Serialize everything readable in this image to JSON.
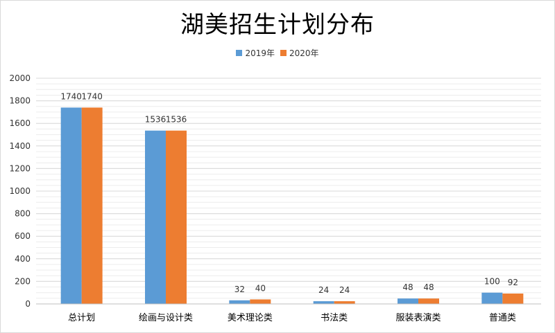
{
  "chart_data": {
    "type": "bar",
    "title": "湖美招生计划分布",
    "categories": [
      "总计划",
      "绘画与设计类",
      "美术理论类",
      "书法类",
      "服装表演类",
      "普通类"
    ],
    "series": [
      {
        "name": "2019年",
        "values": [
          1740,
          1536,
          32,
          24,
          48,
          100
        ],
        "color": "#5b9bd5"
      },
      {
        "name": "2020年",
        "values": [
          1740,
          1536,
          40,
          24,
          48,
          92
        ],
        "color": "#ed7d31"
      }
    ],
    "ylim": [
      0,
      2000
    ],
    "yticks": [
      0,
      200,
      400,
      600,
      800,
      1000,
      1200,
      1400,
      1600,
      1800,
      2000
    ],
    "grid": true,
    "legend_position": "top"
  }
}
